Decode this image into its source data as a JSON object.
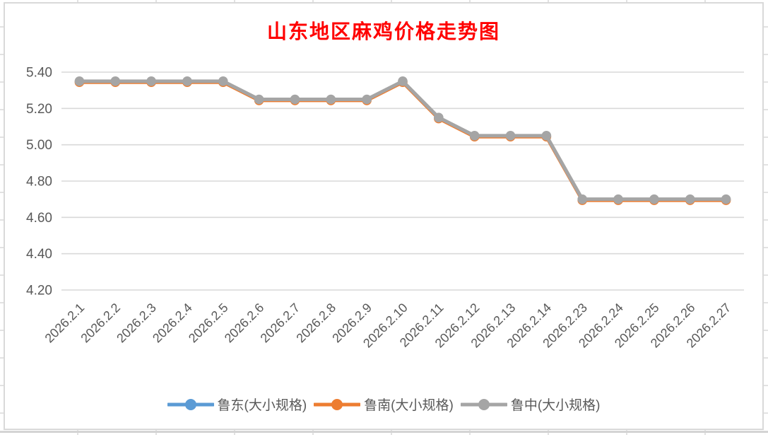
{
  "chart": {
    "title": "山东地区麻鸡价格走势图",
    "title_color": "#FF0000"
  },
  "chart_data": {
    "type": "line",
    "title": "山东地区麻鸡价格走势图",
    "categories": [
      "2026.2.1",
      "2026.2.2",
      "2026.2.3",
      "2026.2.4",
      "2026.2.5",
      "2026.2.6",
      "2026.2.7",
      "2026.2.8",
      "2026.2.9",
      "2026.2.10",
      "2026.2.11",
      "2026.2.12",
      "2026.2.13",
      "2026.2.14",
      "2026.2.23",
      "2026.2.24",
      "2026.2.25",
      "2026.2.26",
      "2026.2.27"
    ],
    "series": [
      {
        "name": "鲁东(大小规格)",
        "color": "#5B9BD5",
        "visible": false,
        "note": "legend entry visible; line completely hidden behind overlapping series",
        "values": [
          5.35,
          5.35,
          5.35,
          5.35,
          5.35,
          5.25,
          5.25,
          5.25,
          5.25,
          5.35,
          5.15,
          5.05,
          5.05,
          5.05,
          4.7,
          4.7,
          4.7,
          4.7,
          4.7
        ]
      },
      {
        "name": "鲁南(大小规格)",
        "color": "#ED7D31",
        "note": "overlaps the gray series; only a thin orange edge shows under the gray line",
        "values": [
          5.35,
          5.35,
          5.35,
          5.35,
          5.35,
          5.25,
          5.25,
          5.25,
          5.25,
          5.35,
          5.15,
          5.05,
          5.05,
          5.05,
          4.7,
          4.7,
          4.7,
          4.7,
          4.7
        ]
      },
      {
        "name": "鲁中(大小规格)",
        "color": "#A5A5A5",
        "values": [
          5.35,
          5.35,
          5.35,
          5.35,
          5.35,
          5.25,
          5.25,
          5.25,
          5.25,
          5.35,
          5.15,
          5.05,
          5.05,
          5.05,
          4.7,
          4.7,
          4.7,
          4.7,
          4.7
        ]
      }
    ],
    "xlabel": "",
    "ylabel": "",
    "ylim": [
      4.2,
      5.4
    ],
    "yticks": [
      5.4,
      5.2,
      5.0,
      4.8,
      4.6,
      4.4,
      4.2
    ],
    "ytick_labels": [
      "5.40",
      "5.20",
      "5.00",
      "4.80",
      "4.60",
      "4.40",
      "4.20"
    ],
    "x_tick_rotation": 45,
    "grid": true,
    "legend_position": "bottom",
    "marker": "circle",
    "axis_text_color": "#595959",
    "gridline_color": "#D9D9D9"
  }
}
